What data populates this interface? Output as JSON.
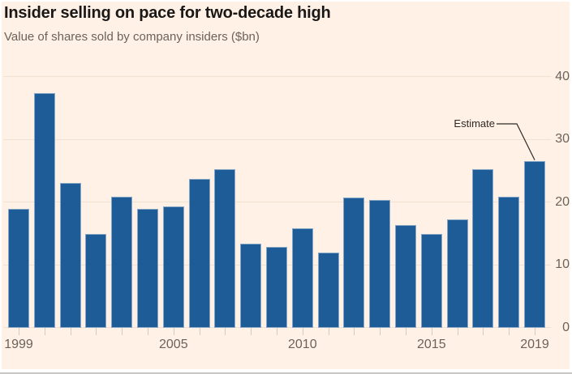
{
  "chart_data": {
    "type": "bar",
    "title": "Insider selling on pace for two-decade high",
    "subtitle": "Value of shares sold by company insiders ($bn)",
    "categories": [
      "1999",
      "2000",
      "2001",
      "2002",
      "2003",
      "2004",
      "2005",
      "2006",
      "2007",
      "2008",
      "2009",
      "2010",
      "2011",
      "2012",
      "2013",
      "2014",
      "2015",
      "2016",
      "2017",
      "2018",
      "2019"
    ],
    "values": [
      18.8,
      37.3,
      23.0,
      14.9,
      20.8,
      18.8,
      19.2,
      23.6,
      25.2,
      13.3,
      12.8,
      15.7,
      11.9,
      20.6,
      20.2,
      16.2,
      14.9,
      17.1,
      25.2,
      20.8,
      26.5
    ],
    "ylim": [
      0,
      40
    ],
    "y_ticks": [
      40,
      30,
      20,
      10,
      0
    ],
    "y_axis_side": "right",
    "x_tick_labels": [
      "1999",
      "2005",
      "2010",
      "2015",
      "2019"
    ],
    "grid": "horizontal",
    "legend": "none",
    "annotation": {
      "text": "Estimate",
      "target_category": "2019"
    }
  },
  "colors": {
    "background": "#fff1e5",
    "frame_border": "#ffffff",
    "bottom_edge": "#c9c6c3",
    "bar": "#1d5c97",
    "title_text": "#1a1817",
    "subtitle_text": "#6b635b",
    "axis_text": "#6b635b",
    "gridline": "#f0e1d1",
    "tick_mark": "#d5cabd",
    "annotation": "#2e2a27"
  }
}
